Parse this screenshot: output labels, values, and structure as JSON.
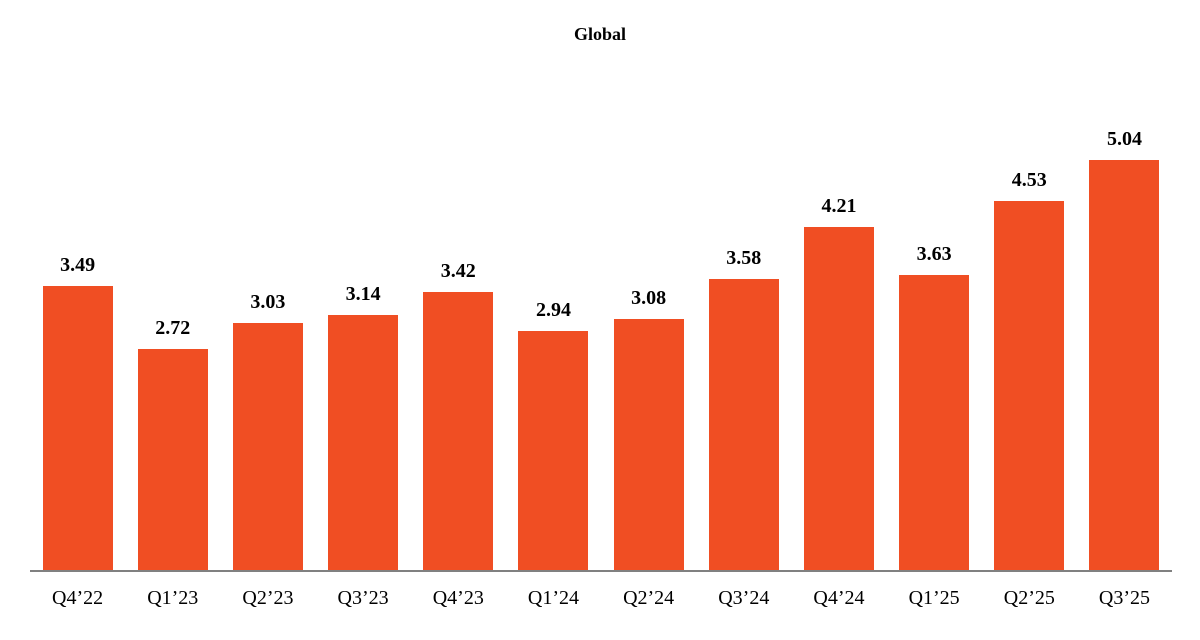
{
  "chart": {
    "title": "Global"
  },
  "chart_data": {
    "type": "bar",
    "title": "Global",
    "categories": [
      "Q4’22",
      "Q1’23",
      "Q2’23",
      "Q3’23",
      "Q4’23",
      "Q1’24",
      "Q2’24",
      "Q3’24",
      "Q4’24",
      "Q1’25",
      "Q2’25",
      "Q3’25"
    ],
    "values": [
      3.49,
      2.72,
      3.03,
      3.14,
      3.42,
      2.94,
      3.08,
      3.58,
      4.21,
      3.63,
      4.53,
      5.04
    ],
    "xlabel": "",
    "ylabel": "",
    "ylim": [
      0,
      5.9
    ],
    "grid": false,
    "legend": false,
    "value_labels": true,
    "bar_color": "#F04E23",
    "axis_line_color": "#808080",
    "text_color": "#000000"
  }
}
